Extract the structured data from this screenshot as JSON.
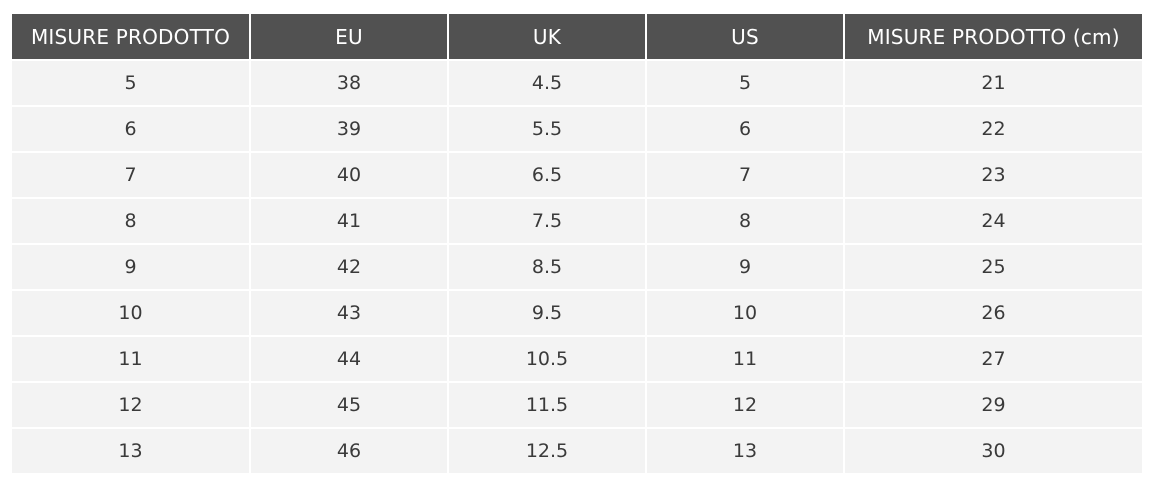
{
  "table": {
    "headers": [
      "MISURE PRODOTTO",
      "EU",
      "UK",
      "US",
      "MISURE PRODOTTO (cm)"
    ],
    "rows": [
      [
        "5",
        "38",
        "4.5",
        "5",
        "21"
      ],
      [
        "6",
        "39",
        "5.5",
        "6",
        "22"
      ],
      [
        "7",
        "40",
        "6.5",
        "7",
        "23"
      ],
      [
        "8",
        "41",
        "7.5",
        "8",
        "24"
      ],
      [
        "9",
        "42",
        "8.5",
        "9",
        "25"
      ],
      [
        "10",
        "43",
        "9.5",
        "10",
        "26"
      ],
      [
        "11",
        "44",
        "10.5",
        "11",
        "27"
      ],
      [
        "12",
        "45",
        "11.5",
        "12",
        "29"
      ],
      [
        "13",
        "46",
        "12.5",
        "13",
        "30"
      ]
    ]
  },
  "colors": {
    "header_background": "#515151",
    "header_text": "#ffffff",
    "cell_background": "#f3f3f3",
    "cell_text": "#3a3a3a"
  }
}
